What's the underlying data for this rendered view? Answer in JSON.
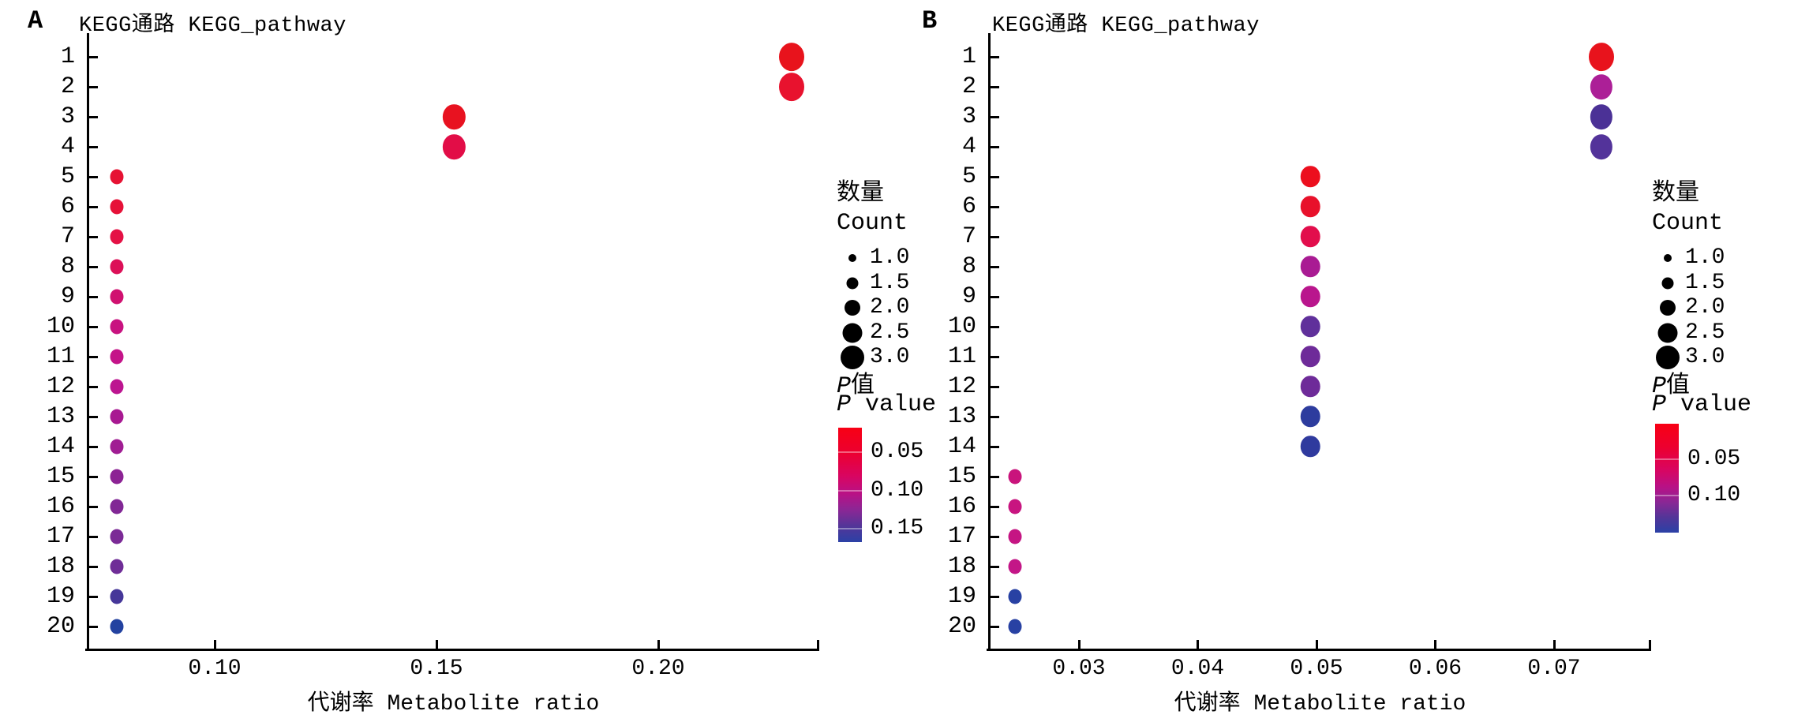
{
  "figure": {
    "background": "#ffffff"
  },
  "chart_data": [
    {
      "panel_label": "A",
      "title": "KEGG通路 KEGG_pathway",
      "type": "scatter",
      "xlabel": "代谢率 Metabolite ratio",
      "ylabel": "",
      "x_tick_labels": [
        "0.10",
        "0.15",
        "0.20"
      ],
      "x_tick_values": [
        0.1,
        0.15,
        0.2
      ],
      "x_range": [
        0.071,
        0.236
      ],
      "y_categories": [
        "1",
        "2",
        "3",
        "4",
        "5",
        "6",
        "7",
        "8",
        "9",
        "10",
        "11",
        "12",
        "13",
        "14",
        "15",
        "16",
        "17",
        "18",
        "19",
        "20"
      ],
      "grid": false,
      "points": [
        {
          "pathway": 1,
          "x": 0.23,
          "count": 3.0,
          "color": "#e8131c"
        },
        {
          "pathway": 2,
          "x": 0.23,
          "count": 3.0,
          "color": "#e8122e"
        },
        {
          "pathway": 3,
          "x": 0.154,
          "count": 2.5,
          "color": "#e81220"
        },
        {
          "pathway": 4,
          "x": 0.154,
          "count": 2.5,
          "color": "#e20d47"
        },
        {
          "pathway": 5,
          "x": 0.078,
          "count": 1.0,
          "color": "#e61233"
        },
        {
          "pathway": 6,
          "x": 0.078,
          "count": 1.0,
          "color": "#e61138"
        },
        {
          "pathway": 7,
          "x": 0.078,
          "count": 1.0,
          "color": "#e41145"
        },
        {
          "pathway": 8,
          "x": 0.078,
          "count": 1.0,
          "color": "#dc1058"
        },
        {
          "pathway": 9,
          "x": 0.078,
          "count": 1.0,
          "color": "#d01170"
        },
        {
          "pathway": 10,
          "x": 0.078,
          "count": 1.0,
          "color": "#c81380"
        },
        {
          "pathway": 11,
          "x": 0.078,
          "count": 1.0,
          "color": "#c41489"
        },
        {
          "pathway": 12,
          "x": 0.078,
          "count": 1.0,
          "color": "#bc1590"
        },
        {
          "pathway": 13,
          "x": 0.078,
          "count": 1.0,
          "color": "#a81992"
        },
        {
          "pathway": 14,
          "x": 0.078,
          "count": 1.0,
          "color": "#a01d93"
        },
        {
          "pathway": 15,
          "x": 0.078,
          "count": 1.0,
          "color": "#8c2394"
        },
        {
          "pathway": 16,
          "x": 0.078,
          "count": 1.0,
          "color": "#812795"
        },
        {
          "pathway": 17,
          "x": 0.078,
          "count": 1.0,
          "color": "#7b2a96"
        },
        {
          "pathway": 18,
          "x": 0.078,
          "count": 1.0,
          "color": "#6f2d97"
        },
        {
          "pathway": 19,
          "x": 0.078,
          "count": 1.0,
          "color": "#463799"
        },
        {
          "pathway": 20,
          "x": 0.078,
          "count": 1.0,
          "color": "#2342a0"
        }
      ],
      "legend": {
        "count_title_zh": "数量",
        "count_title_en": "Count",
        "count_sizes": [
          "1.0",
          "1.5",
          "2.0",
          "2.5",
          "3.0"
        ],
        "count_size_values": [
          1.0,
          1.5,
          2.0,
          2.5,
          3.0
        ],
        "p_title_italic": "P",
        "p_title_zh_suffix": "值",
        "p_title_en_suffix": " value",
        "colorbar_labels": [
          "0.05",
          "0.10",
          "0.15"
        ],
        "colorbar_label_pos": [
          0.214,
          0.552,
          0.883
        ],
        "colorbar_top_color": "#f80014",
        "colorbar_bottom_color": "#2b41a6"
      }
    },
    {
      "panel_label": "B",
      "title": "KEGG通路 KEGG_pathway",
      "type": "scatter",
      "xlabel": "代谢率 Metabolite ratio",
      "ylabel": "",
      "x_tick_labels": [
        "0.03",
        "0.04",
        "0.05",
        "0.06",
        "0.07"
      ],
      "x_tick_values": [
        0.03,
        0.04,
        0.05,
        0.06,
        0.07
      ],
      "x_range": [
        0.0225,
        0.078
      ],
      "y_categories": [
        "1",
        "2",
        "3",
        "4",
        "5",
        "6",
        "7",
        "8",
        "9",
        "10",
        "11",
        "12",
        "13",
        "14",
        "15",
        "16",
        "17",
        "18",
        "19",
        "20"
      ],
      "grid": false,
      "points": [
        {
          "pathway": 1,
          "x": 0.074,
          "count": 3.0,
          "color": "#e8131c"
        },
        {
          "pathway": 2,
          "x": 0.074,
          "count": 2.5,
          "color": "#ac1f97"
        },
        {
          "pathway": 3,
          "x": 0.074,
          "count": 2.5,
          "color": "#4b3196"
        },
        {
          "pathway": 4,
          "x": 0.074,
          "count": 2.5,
          "color": "#53339a"
        },
        {
          "pathway": 5,
          "x": 0.0495,
          "count": 2.0,
          "color": "#ec0f1e"
        },
        {
          "pathway": 6,
          "x": 0.0495,
          "count": 2.0,
          "color": "#e8112b"
        },
        {
          "pathway": 7,
          "x": 0.0495,
          "count": 2.0,
          "color": "#e20e4c"
        },
        {
          "pathway": 8,
          "x": 0.0495,
          "count": 2.0,
          "color": "#a91b93"
        },
        {
          "pathway": 9,
          "x": 0.0495,
          "count": 2.0,
          "color": "#b9168d"
        },
        {
          "pathway": 10,
          "x": 0.0495,
          "count": 2.0,
          "color": "#60309b"
        },
        {
          "pathway": 11,
          "x": 0.0495,
          "count": 2.0,
          "color": "#6e2b99"
        },
        {
          "pathway": 12,
          "x": 0.0495,
          "count": 2.0,
          "color": "#6e2b99"
        },
        {
          "pathway": 13,
          "x": 0.0495,
          "count": 2.0,
          "color": "#2d3c9e"
        },
        {
          "pathway": 14,
          "x": 0.0495,
          "count": 2.0,
          "color": "#2f3a9e"
        },
        {
          "pathway": 15,
          "x": 0.0246,
          "count": 1.0,
          "color": "#c9147c"
        },
        {
          "pathway": 16,
          "x": 0.0246,
          "count": 1.0,
          "color": "#c81580"
        },
        {
          "pathway": 17,
          "x": 0.0246,
          "count": 1.0,
          "color": "#c51583"
        },
        {
          "pathway": 18,
          "x": 0.0246,
          "count": 1.0,
          "color": "#c31687"
        },
        {
          "pathway": 19,
          "x": 0.0246,
          "count": 1.0,
          "color": "#2841a3"
        },
        {
          "pathway": 20,
          "x": 0.0246,
          "count": 1.0,
          "color": "#2841a3"
        }
      ],
      "legend": {
        "count_title_zh": "数量",
        "count_title_en": "Count",
        "count_sizes": [
          "1.0",
          "1.5",
          "2.0",
          "2.5",
          "3.0"
        ],
        "count_size_values": [
          1.0,
          1.5,
          2.0,
          2.5,
          3.0
        ],
        "p_title_italic": "P",
        "p_title_zh_suffix": "值",
        "p_title_en_suffix": " value",
        "colorbar_labels": [
          "0.05",
          "0.10"
        ],
        "colorbar_label_pos": [
          0.326,
          0.659
        ],
        "colorbar_top_color": "#f80014",
        "colorbar_bottom_color": "#2b41a6"
      }
    }
  ]
}
